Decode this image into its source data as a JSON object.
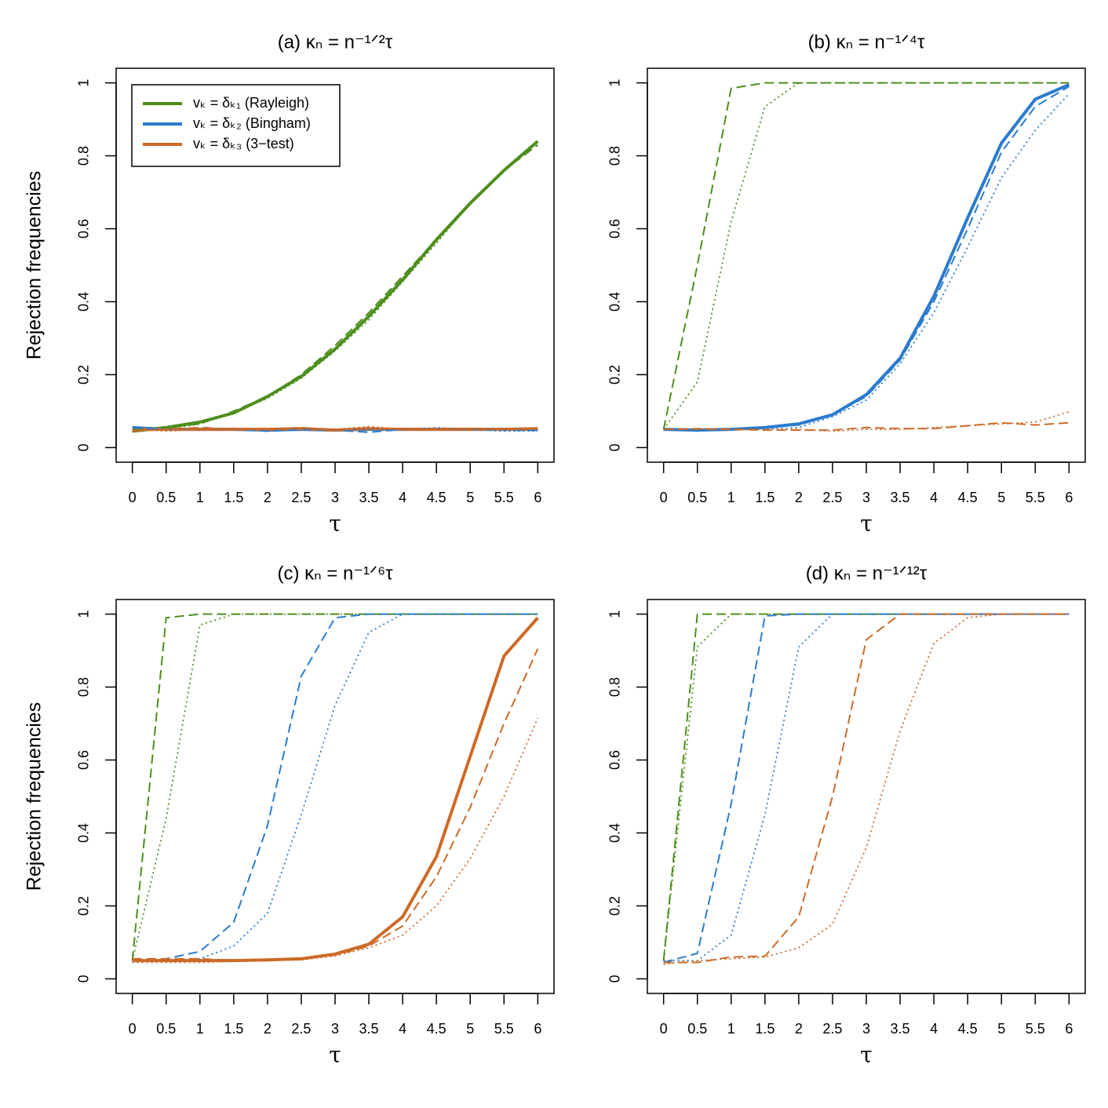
{
  "chart_data": [
    {
      "type": "line",
      "title": "(a)  κₙ = n⁻¹ᐟ²τ",
      "xlabel": "τ",
      "ylabel": "Rejection frequencies",
      "legend": "topleft",
      "x": [
        0,
        0.5,
        1,
        1.5,
        2,
        2.5,
        3,
        3.5,
        4,
        4.5,
        5,
        5.5,
        6
      ],
      "xlim": [
        -0.24,
        6.24
      ],
      "xticks": [
        0,
        0.5,
        1,
        1.5,
        2,
        2.5,
        3,
        3.5,
        4,
        4.5,
        5,
        5.5,
        6
      ],
      "ylim": [
        -0.04,
        1.04
      ],
      "yticks": [
        0,
        0.2,
        0.4,
        0.6,
        0.8,
        1
      ],
      "series": [
        {
          "name": "vₖ = δₖ₁ (Rayleigh)",
          "color": "#4d8e1c",
          "dash": "solid",
          "values": [
            0.045,
            0.055,
            0.07,
            0.095,
            0.14,
            0.195,
            0.27,
            0.36,
            0.46,
            0.57,
            0.67,
            0.76,
            0.84
          ]
        },
        {
          "name": "vₖ = δₖ₂ (Bingham)",
          "color": "#2b7bce",
          "dash": "solid",
          "values": [
            0.055,
            0.05,
            0.05,
            0.05,
            0.048,
            0.05,
            0.048,
            0.05,
            0.05,
            0.05,
            0.05,
            0.05,
            0.05
          ]
        },
        {
          "name": "vₖ = δₖ₃ (3−test)",
          "color": "#cc6a28",
          "dash": "solid",
          "values": [
            0.05,
            0.05,
            0.05,
            0.05,
            0.05,
            0.052,
            0.048,
            0.052,
            0.05,
            0.05,
            0.05,
            0.05,
            0.052
          ]
        },
        {
          "color": "#4d8e1c",
          "dash": "dashed",
          "values": [
            0.05,
            0.055,
            0.065,
            0.1,
            0.14,
            0.2,
            0.28,
            0.37,
            0.47,
            0.57,
            0.67,
            0.76,
            0.83
          ]
        },
        {
          "color": "#4d8e1c",
          "dash": "dotted",
          "values": [
            0.05,
            0.05,
            0.065,
            0.095,
            0.135,
            0.19,
            0.265,
            0.35,
            0.455,
            0.56,
            0.67,
            0.76,
            0.84
          ]
        },
        {
          "color": "#2b7bce",
          "dash": "dashed",
          "values": [
            0.055,
            0.05,
            0.055,
            0.05,
            0.045,
            0.05,
            0.048,
            0.042,
            0.05,
            0.052,
            0.05,
            0.048,
            0.047
          ]
        },
        {
          "color": "#2b7bce",
          "dash": "dotted",
          "values": [
            0.05,
            0.05,
            0.05,
            0.05,
            0.05,
            0.05,
            0.05,
            0.05,
            0.048,
            0.055,
            0.05,
            0.045,
            0.045
          ]
        },
        {
          "color": "#cc6a28",
          "dash": "dashed",
          "values": [
            0.045,
            0.05,
            0.055,
            0.05,
            0.05,
            0.055,
            0.048,
            0.055,
            0.05,
            0.052,
            0.052,
            0.05,
            0.052
          ]
        },
        {
          "color": "#cc6a28",
          "dash": "dotted",
          "values": [
            0.05,
            0.045,
            0.05,
            0.05,
            0.05,
            0.05,
            0.05,
            0.058,
            0.05,
            0.05,
            0.05,
            0.05,
            0.05
          ]
        }
      ]
    },
    {
      "type": "line",
      "title": "(b)  κₙ = n⁻¹ᐟ⁴τ",
      "xlabel": "τ",
      "x": [
        0,
        0.5,
        1,
        1.5,
        2,
        2.5,
        3,
        3.5,
        4,
        4.5,
        5,
        5.5,
        6
      ],
      "xlim": [
        -0.24,
        6.24
      ],
      "xticks": [
        0,
        0.5,
        1,
        1.5,
        2,
        2.5,
        3,
        3.5,
        4,
        4.5,
        5,
        5.5,
        6
      ],
      "ylim": [
        -0.04,
        1.04
      ],
      "yticks": [
        0,
        0.2,
        0.4,
        0.6,
        0.8,
        1
      ],
      "series": [
        {
          "color": "#4d8e1c",
          "dash": "dashed",
          "values": [
            0.05,
            0.5,
            0.985,
            1,
            1,
            1,
            1,
            1,
            1,
            1,
            1,
            1,
            1
          ]
        },
        {
          "color": "#4d8e1c",
          "dash": "dotted",
          "values": [
            0.05,
            0.18,
            0.62,
            0.935,
            1,
            1,
            1,
            1,
            1,
            1,
            1,
            1,
            1
          ]
        },
        {
          "color": "#2b7bce",
          "dash": "solid",
          "values": [
            0.05,
            0.048,
            0.05,
            0.055,
            0.065,
            0.09,
            0.145,
            0.245,
            0.415,
            0.63,
            0.835,
            0.955,
            0.995
          ]
        },
        {
          "color": "#2b7bce",
          "dash": "dashed",
          "values": [
            0.05,
            0.048,
            0.05,
            0.055,
            0.062,
            0.09,
            0.14,
            0.24,
            0.4,
            0.6,
            0.81,
            0.935,
            0.99
          ]
        },
        {
          "color": "#2b7bce",
          "dash": "dotted",
          "values": [
            0.05,
            0.045,
            0.05,
            0.05,
            0.055,
            0.085,
            0.13,
            0.23,
            0.37,
            0.55,
            0.74,
            0.87,
            0.97
          ]
        },
        {
          "color": "#cc6a28",
          "dash": "dashed",
          "values": [
            0.05,
            0.052,
            0.05,
            0.048,
            0.048,
            0.048,
            0.055,
            0.052,
            0.052,
            0.06,
            0.068,
            0.062,
            0.068
          ]
        },
        {
          "color": "#cc6a28",
          "dash": "dotted",
          "values": [
            0.05,
            0.05,
            0.05,
            0.05,
            0.05,
            0.045,
            0.05,
            0.05,
            0.055,
            0.06,
            0.065,
            0.07,
            0.098
          ]
        }
      ]
    },
    {
      "type": "line",
      "title": "(c)  κₙ = n⁻¹ᐟ⁶τ",
      "xlabel": "τ",
      "ylabel": "Rejection frequencies",
      "x": [
        0,
        0.5,
        1,
        1.5,
        2,
        2.5,
        3,
        3.5,
        4,
        4.5,
        5,
        5.5,
        6
      ],
      "xlim": [
        -0.24,
        6.24
      ],
      "xticks": [
        0,
        0.5,
        1,
        1.5,
        2,
        2.5,
        3,
        3.5,
        4,
        4.5,
        5,
        5.5,
        6
      ],
      "ylim": [
        -0.04,
        1.04
      ],
      "yticks": [
        0,
        0.2,
        0.4,
        0.6,
        0.8,
        1
      ],
      "series": [
        {
          "color": "#4d8e1c",
          "dash": "dashed",
          "values": [
            0.05,
            0.99,
            1,
            1,
            1,
            1,
            1,
            1,
            1,
            1,
            1,
            1,
            1
          ]
        },
        {
          "color": "#4d8e1c",
          "dash": "dotted",
          "values": [
            0.05,
            0.44,
            0.97,
            1,
            1,
            1,
            1,
            1,
            1,
            1,
            1,
            1,
            1
          ]
        },
        {
          "color": "#2b7bce",
          "dash": "dashed",
          "values": [
            0.05,
            0.055,
            0.075,
            0.155,
            0.42,
            0.83,
            0.99,
            1,
            1,
            1,
            1,
            1,
            1
          ]
        },
        {
          "color": "#2b7bce",
          "dash": "dotted",
          "values": [
            0.05,
            0.05,
            0.055,
            0.09,
            0.18,
            0.45,
            0.75,
            0.95,
            1,
            1,
            1,
            1,
            1
          ]
        },
        {
          "color": "#cc6a28",
          "dash": "solid",
          "values": [
            0.05,
            0.05,
            0.05,
            0.05,
            0.052,
            0.055,
            0.068,
            0.095,
            0.17,
            0.335,
            0.61,
            0.885,
            0.99
          ]
        },
        {
          "color": "#cc6a28",
          "dash": "dashed",
          "values": [
            0.055,
            0.055,
            0.055,
            0.05,
            0.05,
            0.055,
            0.065,
            0.09,
            0.145,
            0.28,
            0.47,
            0.7,
            0.905
          ]
        },
        {
          "color": "#cc6a28",
          "dash": "dotted",
          "values": [
            0.045,
            0.045,
            0.045,
            0.048,
            0.05,
            0.052,
            0.063,
            0.085,
            0.12,
            0.2,
            0.33,
            0.5,
            0.715
          ]
        }
      ]
    },
    {
      "type": "line",
      "title": "(d)  κₙ = n⁻¹ᐟ¹²τ",
      "xlabel": "τ",
      "x": [
        0,
        0.5,
        1,
        1.5,
        2,
        2.5,
        3,
        3.5,
        4,
        4.5,
        5,
        5.5,
        6
      ],
      "xlim": [
        -0.24,
        6.24
      ],
      "xticks": [
        0,
        0.5,
        1,
        1.5,
        2,
        2.5,
        3,
        3.5,
        4,
        4.5,
        5,
        5.5,
        6
      ],
      "ylim": [
        -0.04,
        1.04
      ],
      "yticks": [
        0,
        0.2,
        0.4,
        0.6,
        0.8,
        1
      ],
      "series": [
        {
          "color": "#4d8e1c",
          "dash": "dashed",
          "values": [
            0.05,
            1,
            1,
            1,
            1,
            1,
            1,
            1,
            1,
            1,
            1,
            1,
            1
          ]
        },
        {
          "color": "#4d8e1c",
          "dash": "dotted",
          "values": [
            0.05,
            0.91,
            1,
            1,
            1,
            1,
            1,
            1,
            1,
            1,
            1,
            1,
            1
          ]
        },
        {
          "color": "#2b7bce",
          "dash": "dashed",
          "values": [
            0.045,
            0.07,
            0.48,
            0.995,
            1,
            1,
            1,
            1,
            1,
            1,
            1,
            1,
            1
          ]
        },
        {
          "color": "#2b7bce",
          "dash": "dotted",
          "values": [
            0.05,
            0.05,
            0.12,
            0.45,
            0.91,
            1,
            1,
            1,
            1,
            1,
            1,
            1,
            1
          ]
        },
        {
          "color": "#cc6a28",
          "dash": "dashed",
          "values": [
            0.045,
            0.045,
            0.06,
            0.062,
            0.17,
            0.5,
            0.93,
            1,
            1,
            1,
            1,
            1,
            1
          ]
        },
        {
          "color": "#cc6a28",
          "dash": "dotted",
          "values": [
            0.04,
            0.05,
            0.055,
            0.06,
            0.085,
            0.15,
            0.36,
            0.68,
            0.92,
            0.99,
            1,
            1,
            1
          ]
        }
      ]
    }
  ]
}
